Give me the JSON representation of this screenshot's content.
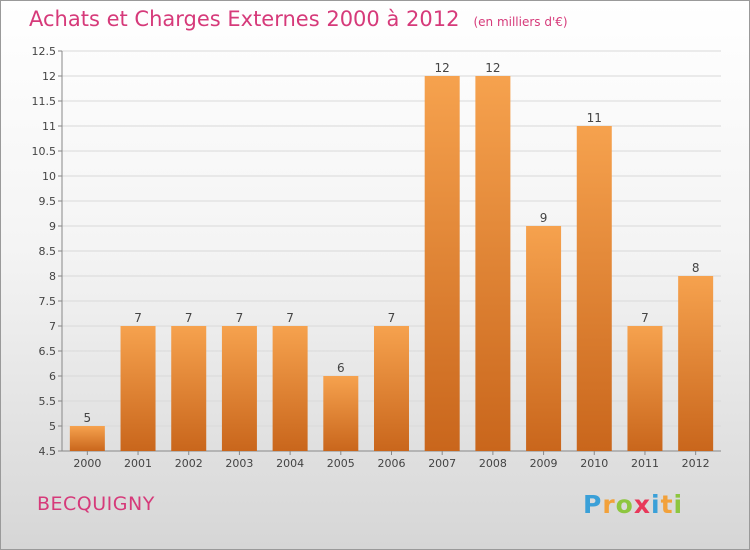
{
  "title": "Achats et Charges Externes 2000 à 2012",
  "unit": "(en milliers d'€)",
  "commune": "BECQUIGNY",
  "logo": {
    "letters": [
      "P",
      "r",
      "o",
      "x",
      "i",
      "t",
      "i"
    ],
    "colors": [
      "#3aa0d8",
      "#f2a13a",
      "#8dc63f",
      "#e8385a",
      "#3aa0d8",
      "#f2a13a",
      "#8dc63f"
    ]
  },
  "colors": {
    "bar_top": "#f6a24e",
    "bar_bottom": "#c9661c",
    "title": "#d63a7a"
  },
  "chart_data": {
    "type": "bar",
    "categories": [
      "2000",
      "2001",
      "2002",
      "2003",
      "2004",
      "2005",
      "2006",
      "2007",
      "2008",
      "2009",
      "2010",
      "2011",
      "2012"
    ],
    "values": [
      5,
      7,
      7,
      7,
      7,
      6,
      7,
      12,
      12,
      9,
      11,
      7,
      8
    ],
    "data_labels": [
      "5",
      "7",
      "7",
      "7",
      "7",
      "6",
      "7",
      "12",
      "12",
      "9",
      "11",
      "7",
      "8"
    ],
    "yticks": [
      "4.5",
      "5",
      "5.5",
      "6",
      "6.5",
      "7",
      "7.5",
      "8",
      "8.5",
      "9",
      "9.5",
      "10",
      "10.5",
      "11",
      "11.5",
      "12",
      "12.5"
    ],
    "ylim": [
      4.5,
      12.5
    ],
    "grid": true
  }
}
